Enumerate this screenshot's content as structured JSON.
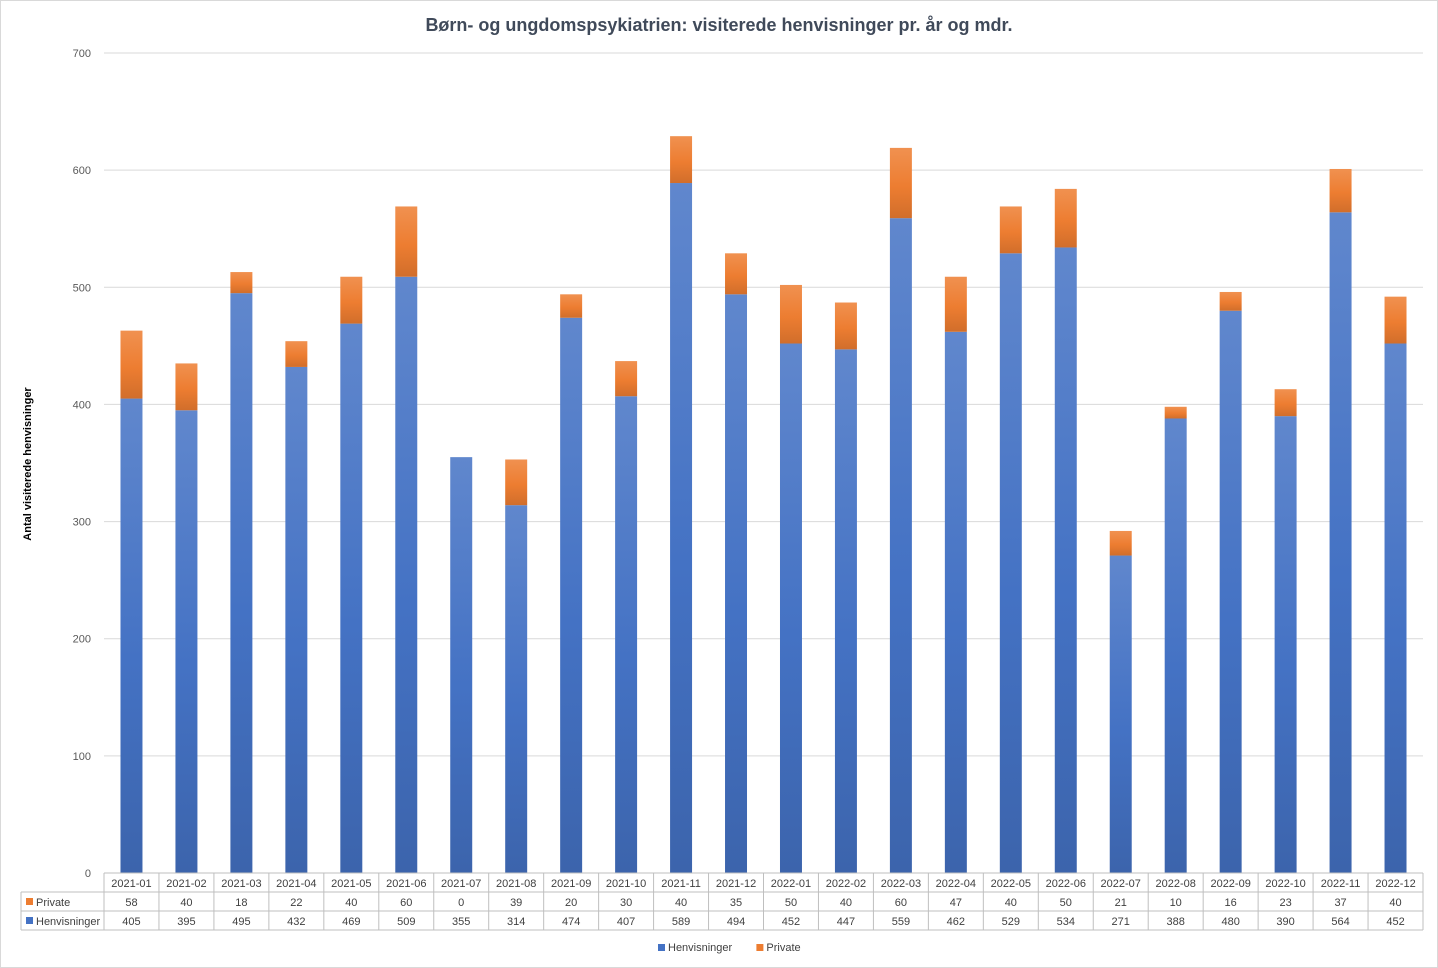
{
  "chart_data": {
    "type": "bar",
    "stacked": true,
    "title": "Børn- og ungdomspsykiatrien:  visiterede henvisninger pr. år og mdr.",
    "ylabel": "Antal visiterede henvisninger",
    "xlabel": "",
    "ylim": [
      0,
      700
    ],
    "yticks": [
      0,
      100,
      200,
      300,
      400,
      500,
      600,
      700
    ],
    "grid": true,
    "legend_position": "bottom",
    "data_table": true,
    "categories": [
      "2021-01",
      "2021-02",
      "2021-03",
      "2021-04",
      "2021-05",
      "2021-06",
      "2021-07",
      "2021-08",
      "2021-09",
      "2021-10",
      "2021-11",
      "2021-12",
      "2022-01",
      "2022-02",
      "2022-03",
      "2022-04",
      "2022-05",
      "2022-06",
      "2022-07",
      "2022-08",
      "2022-09",
      "2022-10",
      "2022-11",
      "2022-12"
    ],
    "series": [
      {
        "name": "Henvisninger",
        "color": "#4472c4",
        "values": [
          405,
          395,
          495,
          432,
          469,
          509,
          355,
          314,
          474,
          407,
          589,
          494,
          452,
          447,
          559,
          462,
          529,
          534,
          271,
          388,
          480,
          390,
          564,
          452
        ]
      },
      {
        "name": "Private",
        "color": "#ed7d31",
        "values": [
          58,
          40,
          18,
          22,
          40,
          60,
          0,
          39,
          20,
          30,
          40,
          35,
          50,
          40,
          60,
          47,
          40,
          50,
          21,
          10,
          16,
          23,
          37,
          40
        ]
      }
    ]
  }
}
